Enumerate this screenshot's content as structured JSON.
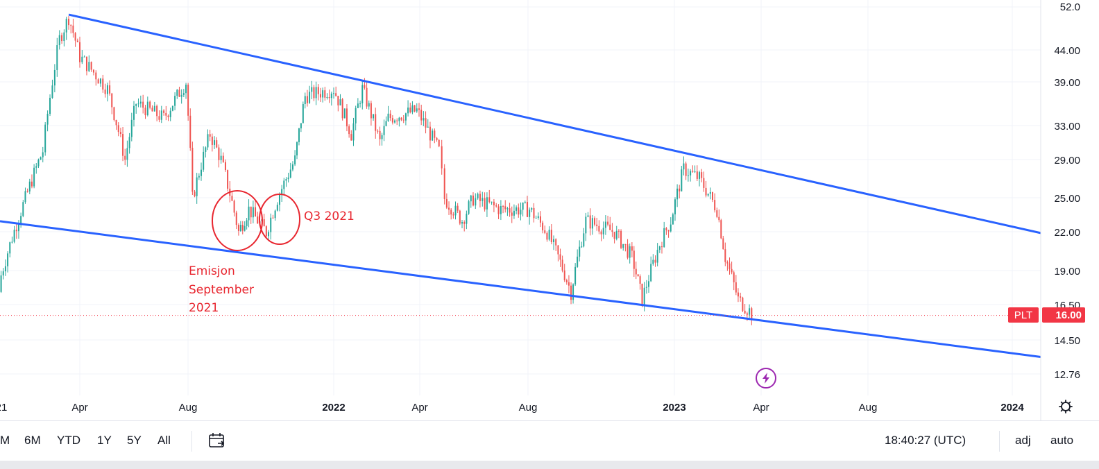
{
  "chart_data": {
    "type": "candlestick",
    "symbol": "PLT",
    "last_price": "16.00",
    "x_tick_labels": [
      "21",
      "Apr",
      "Aug",
      "2022",
      "Apr",
      "Aug",
      "2023",
      "Apr",
      "Aug",
      "2024"
    ],
    "y_tick_labels": [
      "52.0",
      "44.00",
      "39.00",
      "33.00",
      "29.00",
      "25.00",
      "22.00",
      "19.00",
      "16.50",
      "14.50",
      "12.76"
    ],
    "y_scale": "log",
    "ylim": [
      11.5,
      53
    ],
    "price_series": [
      {
        "date": "2021-01",
        "close": 17.5
      },
      {
        "date": "2021-02",
        "close": 25
      },
      {
        "date": "2021-02-20",
        "close": 30
      },
      {
        "date": "2021-03-10",
        "close": 46
      },
      {
        "date": "2021-03-20",
        "close": 50
      },
      {
        "date": "2021-04",
        "close": 43
      },
      {
        "date": "2021-05",
        "close": 38
      },
      {
        "date": "2021-05-20",
        "close": 29
      },
      {
        "date": "2021-06",
        "close": 36
      },
      {
        "date": "2021-07",
        "close": 34
      },
      {
        "date": "2021-07-25",
        "close": 39
      },
      {
        "date": "2021-08",
        "close": 25
      },
      {
        "date": "2021-08-20",
        "close": 32
      },
      {
        "date": "2021-09",
        "close": 29
      },
      {
        "date": "2021-09-20",
        "close": 22
      },
      {
        "date": "2021-10",
        "close": 24
      },
      {
        "date": "2021-10-20",
        "close": 22
      },
      {
        "date": "2021-11",
        "close": 25
      },
      {
        "date": "2021-11-20",
        "close": 29
      },
      {
        "date": "2021-12",
        "close": 37
      },
      {
        "date": "2022-01",
        "close": 38
      },
      {
        "date": "2022-01-20",
        "close": 32
      },
      {
        "date": "2022-02",
        "close": 38
      },
      {
        "date": "2022-02-20",
        "close": 31
      },
      {
        "date": "2022-03",
        "close": 34
      },
      {
        "date": "2022-04",
        "close": 35
      },
      {
        "date": "2022-04-25",
        "close": 30
      },
      {
        "date": "2022-05",
        "close": 25
      },
      {
        "date": "2022-05-20",
        "close": 23
      },
      {
        "date": "2022-06",
        "close": 25
      },
      {
        "date": "2022-07",
        "close": 24
      },
      {
        "date": "2022-08",
        "close": 24
      },
      {
        "date": "2022-08-20",
        "close": 22
      },
      {
        "date": "2022-09",
        "close": 20
      },
      {
        "date": "2022-09-15",
        "close": 17.5
      },
      {
        "date": "2022-10",
        "close": 23
      },
      {
        "date": "2022-11",
        "close": 22
      },
      {
        "date": "2022-11-20",
        "close": 20
      },
      {
        "date": "2022-12",
        "close": 17
      },
      {
        "date": "2022-12-20",
        "close": 21
      },
      {
        "date": "2023-01",
        "close": 23
      },
      {
        "date": "2023-01-15",
        "close": 28
      },
      {
        "date": "2023-02",
        "close": 27
      },
      {
        "date": "2023-02-20",
        "close": 24
      },
      {
        "date": "2023-03",
        "close": 20
      },
      {
        "date": "2023-03-15",
        "close": 17
      },
      {
        "date": "2023-04",
        "close": 16
      }
    ],
    "trendlines": [
      {
        "name": "upper-channel",
        "points": [
          {
            "date": "2021-03-20",
            "price": 50.5
          },
          {
            "date": "2024-03",
            "price": 21.5
          }
        ]
      },
      {
        "name": "lower-channel",
        "points": [
          {
            "date": "2020-12",
            "price": 23.3
          },
          {
            "date": "2024-03",
            "price": 13.5
          }
        ]
      }
    ],
    "annotations": [
      {
        "text": "Q3 2021"
      },
      {
        "lines": [
          "Emisjon",
          "September",
          "2021"
        ]
      }
    ]
  },
  "colors": {
    "up": "#26a69a",
    "down": "#ef5350",
    "trendline": "#2962ff",
    "annotation": "#e8262f",
    "price_tag": "#f23645",
    "flash_icon": "#9c27b0"
  },
  "toolbar": {
    "ranges": [
      "M",
      "6M",
      "YTD",
      "1Y",
      "5Y",
      "All"
    ],
    "date_range_icon": "calendar-icon",
    "time": "18:40:27 (UTC)",
    "adj": "adj",
    "auto": "auto"
  },
  "icons": {
    "settings": "gear-icon",
    "flash": "lightning-icon"
  }
}
